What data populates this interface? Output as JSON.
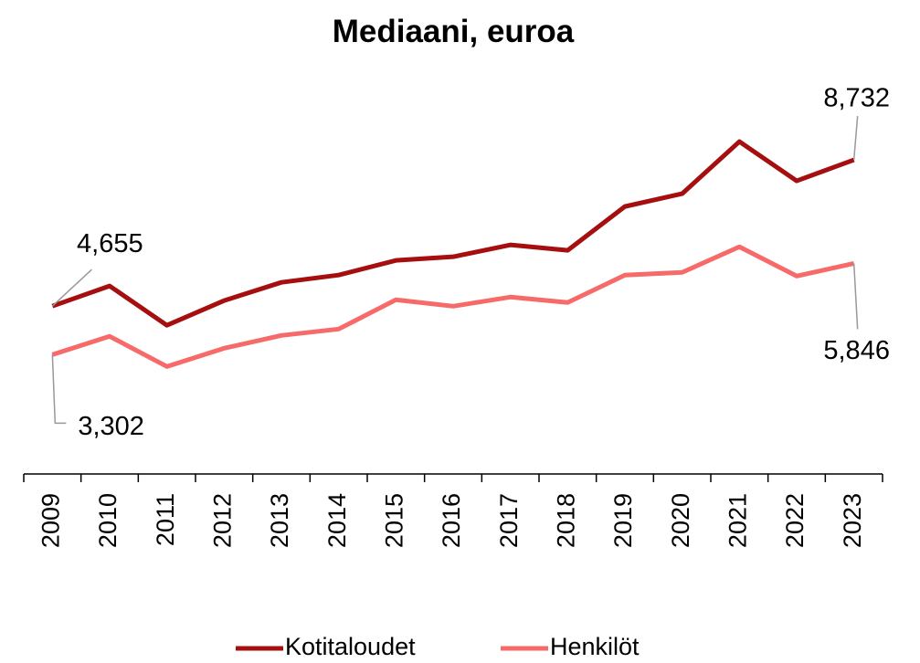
{
  "chart_data": {
    "type": "line",
    "title": "Mediaani, euroa",
    "categories": [
      "2009",
      "2010",
      "2011",
      "2012",
      "2013",
      "2014",
      "2015",
      "2016",
      "2017",
      "2018",
      "2019",
      "2020",
      "2021",
      "2022",
      "2023"
    ],
    "series": [
      {
        "name": "Kotitaloudet",
        "color": "#a50f0f",
        "values": [
          4655,
          5216,
          4120,
          4808,
          5317,
          5521,
          5929,
          6031,
          6362,
          6209,
          7432,
          7789,
          9241,
          8146,
          8732
        ],
        "value_labels": [
          "4,655",
          null,
          null,
          null,
          null,
          null,
          null,
          null,
          null,
          null,
          null,
          null,
          null,
          null,
          "8,732"
        ]
      },
      {
        "name": "Henkilöt",
        "color": "#f76a6a",
        "values": [
          3302,
          3812,
          2971,
          3480,
          3837,
          4015,
          4831,
          4652,
          4907,
          4754,
          5519,
          5595,
          6309,
          5493,
          5846
        ],
        "value_labels": [
          "3,302",
          null,
          null,
          null,
          null,
          null,
          null,
          null,
          null,
          null,
          null,
          null,
          null,
          null,
          "5,846"
        ]
      }
    ],
    "ylim": [
      0,
      11000
    ],
    "legend": "bottom"
  }
}
